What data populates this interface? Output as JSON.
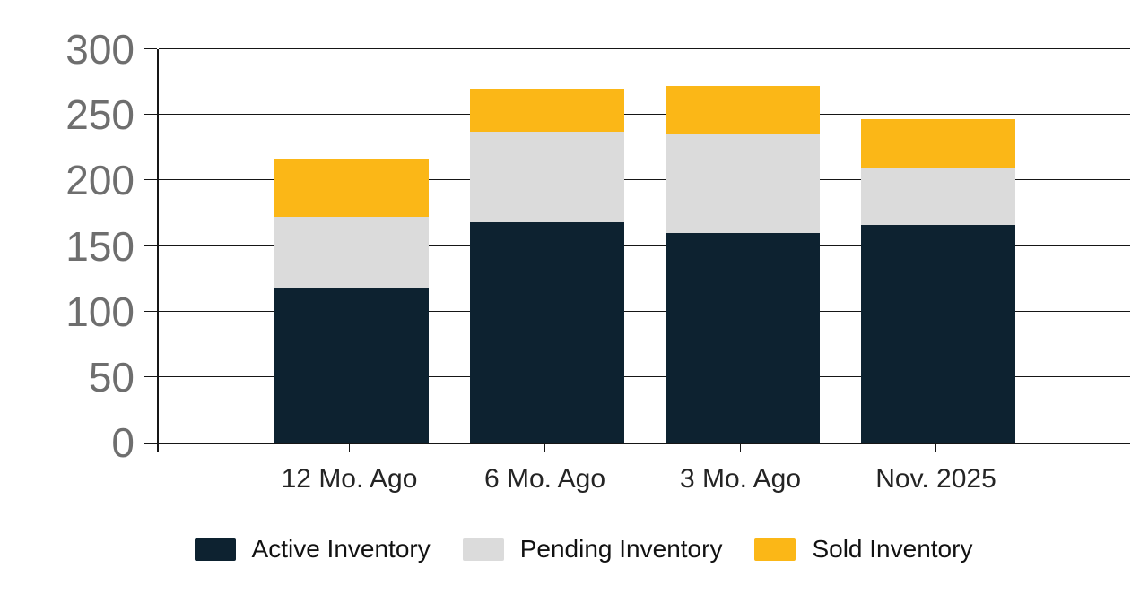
{
  "chart_data": {
    "type": "bar",
    "stacked": true,
    "title": "",
    "xlabel": "",
    "ylabel": "",
    "categories": [
      "12 Mo. Ago",
      "6 Mo. Ago",
      "3 Mo. Ago",
      "Nov. 2025"
    ],
    "series": [
      {
        "name": "Active Inventory",
        "color": "#0d2230",
        "values": [
          118,
          168,
          160,
          166
        ]
      },
      {
        "name": "Pending Inventory",
        "color": "#dbdbdb",
        "values": [
          54,
          69,
          75,
          43
        ]
      },
      {
        "name": "Sold Inventory",
        "color": "#fbb717",
        "values": [
          44,
          33,
          37,
          38
        ]
      }
    ],
    "totals": [
      216,
      270,
      272,
      247
    ],
    "ylim": [
      0,
      300
    ],
    "yticks": [
      0,
      50,
      100,
      150,
      200,
      250,
      300
    ],
    "grid": true,
    "legend_position": "bottom"
  },
  "style_colors": {
    "axis": "#161616",
    "y_tick_label": "#6e6e6e",
    "x_tick_label": "#242424",
    "legend_text": "#111111",
    "background": "#ffffff"
  }
}
